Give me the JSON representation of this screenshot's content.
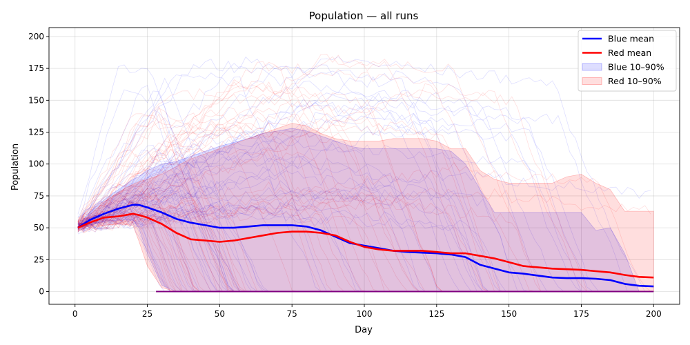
{
  "chart_data": {
    "type": "line",
    "title": "Population — all runs",
    "xlabel": "Day",
    "ylabel": "Population",
    "xlim": [
      -9,
      209
    ],
    "ylim": [
      -10,
      207
    ],
    "xticks": [
      0,
      25,
      50,
      75,
      100,
      125,
      150,
      175,
      200
    ],
    "yticks": [
      0,
      25,
      50,
      75,
      100,
      125,
      150,
      175,
      200
    ],
    "grid": true,
    "legend": {
      "position": "top-right",
      "entries": [
        {
          "label": "Blue mean",
          "kind": "line",
          "color": "#0000ff"
        },
        {
          "label": "Red mean",
          "kind": "line",
          "color": "#ff0000"
        },
        {
          "label": "Blue 10–90%",
          "kind": "band",
          "color": "#0000ff"
        },
        {
          "label": "Red 10–90%",
          "kind": "band",
          "color": "#ff0000"
        }
      ]
    },
    "x": [
      1,
      5,
      10,
      15,
      20,
      22,
      25,
      30,
      35,
      40,
      45,
      50,
      55,
      60,
      65,
      70,
      75,
      80,
      85,
      90,
      95,
      100,
      105,
      110,
      115,
      120,
      125,
      130,
      135,
      140,
      145,
      150,
      155,
      160,
      165,
      170,
      175,
      180,
      185,
      190,
      195,
      200
    ],
    "series": [
      {
        "name": "Blue mean",
        "color": "#0000ff",
        "values": [
          50,
          56,
          61,
          65,
          68,
          68,
          66,
          62,
          57,
          54,
          52,
          50,
          50,
          51,
          52,
          52,
          52,
          51,
          48,
          43,
          38,
          36,
          34,
          32,
          31,
          30.5,
          30,
          29,
          27,
          21,
          18,
          15,
          14,
          12.5,
          11,
          10.5,
          10.5,
          10,
          9,
          6,
          4.5,
          4
        ]
      },
      {
        "name": "Red mean",
        "color": "#ff0000",
        "values": [
          50,
          54,
          58,
          59,
          61,
          60,
          58,
          53,
          46,
          41,
          40,
          39,
          40,
          42,
          44,
          46,
          47,
          47,
          46,
          44,
          39,
          35,
          33,
          32,
          32,
          32,
          31,
          30,
          30,
          28,
          26,
          23,
          20,
          19,
          18,
          17.5,
          17,
          16,
          15,
          13,
          11.5,
          11
        ]
      }
    ],
    "bands": [
      {
        "name": "Blue 10–90%",
        "color": "#0000ff",
        "lower": [
          50,
          52,
          55,
          56,
          56,
          50,
          30,
          5,
          0,
          0,
          0,
          0,
          0,
          0,
          0,
          0,
          0,
          0,
          0,
          0,
          0,
          0,
          0,
          0,
          0,
          0,
          0,
          0,
          0,
          0,
          0,
          0,
          0,
          0,
          0,
          0,
          0,
          0,
          0,
          0,
          0,
          0
        ],
        "upper": [
          51,
          62,
          72,
          80,
          88,
          90,
          95,
          100,
          102,
          106,
          110,
          114,
          117,
          120,
          124,
          126,
          128,
          126,
          122,
          118,
          114,
          112,
          112,
          112,
          112,
          112,
          112,
          110,
          100,
          80,
          62,
          62,
          62,
          62,
          62,
          62,
          62,
          48,
          50,
          30,
          0,
          0
        ]
      },
      {
        "name": "Red 10–90%",
        "color": "#ff0000",
        "lower": [
          50,
          51,
          52,
          53,
          52,
          40,
          20,
          3,
          0,
          0,
          0,
          0,
          0,
          0,
          0,
          0,
          0,
          0,
          0,
          0,
          0,
          0,
          0,
          0,
          0,
          0,
          0,
          0,
          0,
          0,
          0,
          0,
          0,
          0,
          0,
          0,
          0,
          0,
          0,
          0,
          0,
          0
        ],
        "upper": [
          51,
          60,
          70,
          78,
          84,
          86,
          88,
          92,
          98,
          104,
          108,
          112,
          116,
          120,
          124,
          128,
          132,
          130,
          124,
          120,
          118,
          118,
          118,
          120,
          120,
          120,
          118,
          112,
          112,
          95,
          88,
          85,
          85,
          85,
          85,
          90,
          92,
          85,
          80,
          63,
          63,
          63
        ]
      }
    ]
  },
  "colors": {
    "blue": "#0000ff",
    "red": "#ff0000",
    "band_overlap": "#d8bcdc",
    "zero_line": "#7f0080"
  }
}
